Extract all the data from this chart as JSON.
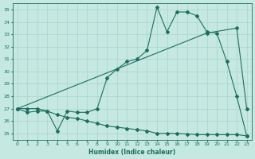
{
  "xlabel": "Humidex (Indice chaleur)",
  "bg_color": "#c5e8e0",
  "grid_color": "#a8d4cc",
  "line_color": "#1e6e5e",
  "xlim": [
    -0.5,
    23.5
  ],
  "ylim": [
    24.5,
    35.5
  ],
  "xticks": [
    0,
    1,
    2,
    3,
    4,
    5,
    6,
    7,
    8,
    9,
    10,
    11,
    12,
    13,
    14,
    15,
    16,
    17,
    18,
    19,
    20,
    21,
    22,
    23
  ],
  "yticks": [
    25,
    26,
    27,
    28,
    29,
    30,
    31,
    32,
    33,
    34,
    35
  ],
  "line1_x": [
    0,
    1,
    2,
    3,
    4,
    5,
    6,
    7,
    8,
    9,
    10,
    11,
    12,
    13,
    14,
    15,
    16,
    17,
    18,
    19,
    20,
    21,
    22,
    23
  ],
  "line1_y": [
    27.0,
    26.7,
    26.8,
    26.8,
    25.2,
    26.8,
    26.7,
    26.7,
    27.0,
    29.5,
    30.2,
    30.8,
    31.0,
    31.7,
    35.2,
    33.2,
    34.8,
    34.8,
    34.5,
    33.2,
    33.1,
    30.8,
    28.0,
    24.8
  ],
  "line2_x": [
    0,
    19,
    22,
    23
  ],
  "line2_y": [
    27.0,
    33.1,
    33.5,
    27.0
  ],
  "line3_x": [
    0,
    1,
    2,
    3,
    4,
    5,
    6,
    7,
    8,
    9,
    10,
    11,
    12,
    13,
    14,
    15,
    16,
    17,
    18,
    19,
    20,
    21,
    22,
    23
  ],
  "line3_y": [
    27.0,
    27.0,
    27.0,
    26.8,
    26.5,
    26.3,
    26.2,
    26.0,
    25.8,
    25.6,
    25.5,
    25.4,
    25.3,
    25.2,
    25.0,
    25.0,
    25.0,
    24.95,
    24.9,
    24.9,
    24.9,
    24.9,
    24.9,
    24.8
  ]
}
